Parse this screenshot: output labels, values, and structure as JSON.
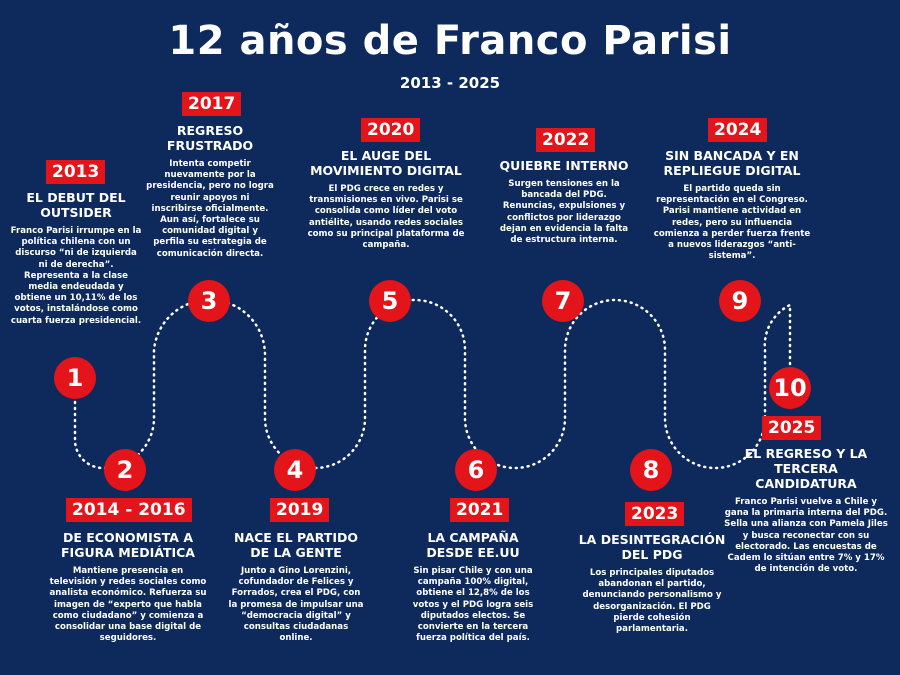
{
  "title": "12 años de Franco Parisi",
  "subtitle": "2013 - 2025",
  "milestones": [
    {
      "number": "1",
      "year": "2013",
      "heading": "EL DEBUT DEL OUTSIDER",
      "text": "Franco Parisi irrumpe en la política chilena con un discurso “ni de izquierda ni de derecha”. Representa a la clase media endeudada y obtiene un 10,11% de los votos, instalándose como cuarta fuerza presidencial."
    },
    {
      "number": "2",
      "year": "2014 - 2016",
      "heading": "DE ECONOMISTA A FIGURA MEDIÁTICA",
      "text": "Mantiene presencia en televisión y redes sociales como analista económico. Refuerza su imagen de “experto que habla como ciudadano” y comienza a consolidar una base digital de seguidores."
    },
    {
      "number": "3",
      "year": "2017",
      "heading": "REGRESO FRUSTRADO",
      "text": "Intenta competir nuevamente por la presidencia, pero no logra reunir apoyos ni inscribirse oficialmente. Aun así, fortalece su comunidad digital y perfila su estrategia de comunicación directa."
    },
    {
      "number": "4",
      "year": "2019",
      "heading": "NACE EL PARTIDO DE LA GENTE",
      "text": "Junto a Gino Lorenzini, cofundador de Felices y Forrados, crea el PDG, con la promesa de impulsar una “democracia digital” y consultas ciudadanas online."
    },
    {
      "number": "5",
      "year": "2020",
      "heading": "EL AUGE DEL MOVIMIENTO DIGITAL",
      "text": "El PDG crece en redes y transmisiones en vivo. Parisi se consolida como líder del voto antiélite, usando redes sociales como su principal plataforma de campaña."
    },
    {
      "number": "6",
      "year": "2021",
      "heading": "LA CAMPAÑA DESDE EE.UU",
      "text": "Sin pisar Chile y con una campaña 100% digital, obtiene el 12,8% de los votos y el PDG logra seis diputados electos. Se convierte en la tercera fuerza política del país."
    },
    {
      "number": "7",
      "year": "2022",
      "heading": "QUIEBRE INTERNO",
      "text": "Surgen tensiones en la bancada del PDG. Renuncias, expulsiones y conflictos por liderazgo dejan en evidencia la falta de estructura interna."
    },
    {
      "number": "8",
      "year": "2023",
      "heading": "LA DESINTEGRACIÓN DEL PDG",
      "text": "Los principales diputados abandonan el partido, denunciando personalismo y desorganización. El PDG pierde cohesión parlamentaria."
    },
    {
      "number": "9",
      "year": "2024",
      "heading": "SIN BANCADA Y EN REPLIEGUE DIGITAL",
      "text": "El partido queda sin representación en el Congreso. Parisi mantiene actividad en redes, pero su influencia comienza a perder fuerza frente a nuevos liderazgos “anti-sistema”."
    },
    {
      "number": "10",
      "year": "2025",
      "heading": "EL REGRESO Y LA TERCERA CANDIDATURA",
      "text": "Franco Parisi vuelve a Chile y gana la primaria interna del PDG. Sella una alianza con Pamela Jiles y busca reconectar con su electorado. Las encuestas de Cadem lo sitúan entre 7% y 17% de intención de voto."
    }
  ]
}
